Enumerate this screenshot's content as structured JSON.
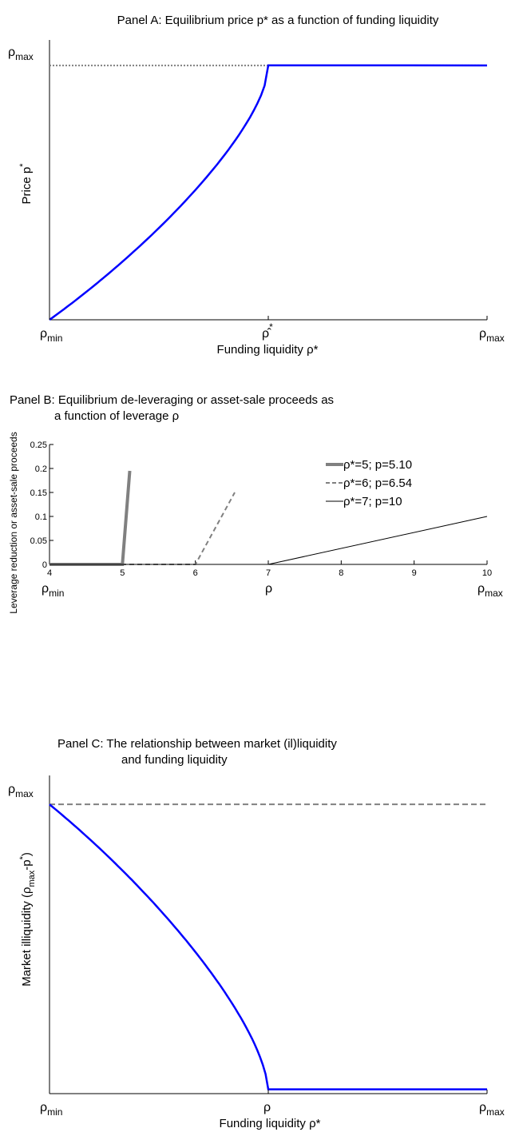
{
  "chart_data": [
    {
      "type": "line",
      "title": "Panel A: Equilibrium price p* as a function of funding liquidity",
      "xlabel": "Funding liquidity ρ*",
      "ylabel": "Price p*",
      "x_ticks": [
        {
          "main": "ρ",
          "sub": "min",
          "pos": 0
        },
        {
          "main": "ρ̂",
          "sub": "",
          "sup": "*",
          "pos": 0.5
        },
        {
          "main": "ρ",
          "sub": "max",
          "pos": 1
        }
      ],
      "y_ticks": [
        {
          "main": "ρ",
          "sub": "max",
          "pos": 1
        }
      ],
      "xlim": [
        0,
        1
      ],
      "ylim": [
        0,
        1.1
      ],
      "series": [
        {
          "role": "price",
          "color": "#0000ff",
          "kink_x": 0.5,
          "level": 1
        },
        {
          "role": "reference",
          "color": "#808080",
          "level": 1
        }
      ]
    },
    {
      "type": "line",
      "title": "Panel B: Equilibrium de-leveraging or asset-sale proceeds as a function of leverage ρ",
      "title_lines": [
        "Panel B: Equilibrium de-leveraging or asset-sale proceeds as",
        "a function of leverage ρ"
      ],
      "xlabel": "ρ",
      "ylabel": "Leverage reduction or asset-sale proceeds",
      "xlim": [
        4,
        10
      ],
      "ylim": [
        0,
        0.25
      ],
      "x_ticks": [
        4,
        5,
        6,
        7,
        8,
        9,
        10
      ],
      "y_ticks": [
        0,
        0.05,
        0.1,
        0.15,
        0.2,
        0.25
      ],
      "x_extra_labels": [
        {
          "main": "ρ",
          "sub": "min",
          "x": 4
        },
        {
          "main": "ρ",
          "sub": "",
          "x": 7
        },
        {
          "main": "ρ",
          "sub": "max",
          "x": 10
        }
      ],
      "legend_position": "top-right",
      "series": [
        {
          "name": "ρ*=5; p=5.10",
          "color": "#808080",
          "dash": "",
          "width": 4,
          "x": [
            4,
            5,
            5.1
          ],
          "y": [
            0,
            0,
            0.195
          ]
        },
        {
          "name": "ρ*=6; p=6.54",
          "color": "#808080",
          "dash": "6,4",
          "width": 2,
          "x": [
            4,
            6,
            6.54
          ],
          "y": [
            0,
            0,
            0.15
          ]
        },
        {
          "name": "ρ*=7; p=10",
          "color": "#000000",
          "dash": "",
          "width": 1,
          "x": [
            4,
            7,
            10
          ],
          "y": [
            0,
            0,
            0.1
          ]
        }
      ]
    },
    {
      "type": "line",
      "title": "Panel C: The relationship between market (il)liquidity and funding liquidity",
      "title_lines": [
        "Panel C: The relationship between market (il)liquidity",
        "and funding liquidity"
      ],
      "xlabel": "Funding liquidity ρ*",
      "ylabel": "Market illiquidity (ρmax-p*)",
      "x_ticks": [
        {
          "main": "ρ",
          "sub": "min",
          "pos": 0
        },
        {
          "main": "ρ",
          "sub": "",
          "pos": 0.5
        },
        {
          "main": "ρ",
          "sub": "max",
          "pos": 1
        }
      ],
      "y_ticks": [
        {
          "main": "ρ",
          "sub": "max",
          "pos": 1
        }
      ],
      "xlim": [
        0,
        1
      ],
      "ylim": [
        0,
        1.1
      ],
      "series": [
        {
          "role": "illiquidity",
          "color": "#0000ff",
          "kink_x": 0.5,
          "level": 1
        },
        {
          "role": "reference",
          "color": "#808080",
          "level": 1
        }
      ]
    }
  ],
  "labels": {
    "a_ylabel": "Price p",
    "a_ylabel_sup": "*",
    "c_ylabel_pre": "Market illiquidity (ρ",
    "c_ylabel_sub": "max",
    "c_ylabel_post": "-p",
    "c_ylabel_sup": "*",
    "c_ylabel_end": ")"
  }
}
